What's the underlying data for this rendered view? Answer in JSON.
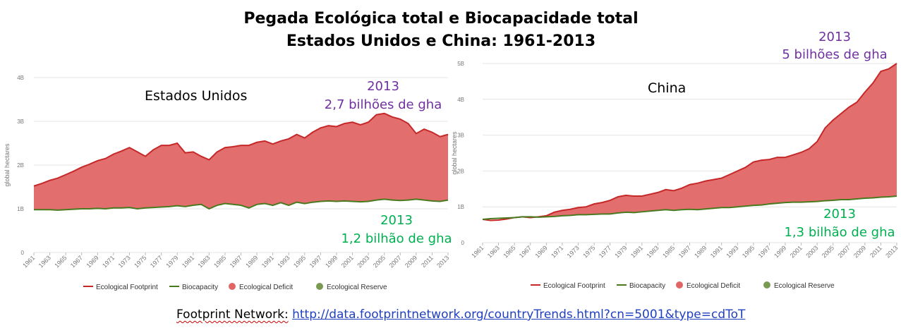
{
  "title_line1": "Pegada Ecológica total e Biocapacidade total",
  "title_line2": "Estados Unidos e China: 1961-2013",
  "source_label": "Footprint Network:",
  "source_url": "http://data.footprintnetwork.org/countryTrends.html?cn=5001&type=cdToT",
  "colors": {
    "footprint": "#c62828",
    "biocapacity": "#4a7a1f",
    "deficit": "#e06666",
    "reserve": "#7a9a52",
    "annotation_purple": "#7030a0",
    "annotation_green": "#00b050"
  },
  "chart_data": [
    {
      "type": "area",
      "country": "Estados Unidos",
      "ylabel": "global hectares",
      "y_ticks": [
        "0",
        "1B",
        "2B",
        "3B",
        "4B"
      ],
      "ylim": [
        0,
        4
      ],
      "x_ticks": [
        "1961",
        "1963",
        "1965",
        "1967",
        "1969",
        "1971",
        "1973",
        "1975",
        "1977",
        "1979",
        "1981",
        "1983",
        "1985",
        "1987",
        "1989",
        "1991",
        "1993",
        "1995",
        "1997",
        "1999",
        "2001",
        "2003",
        "2005",
        "2007",
        "2009",
        "2011",
        "2013"
      ],
      "x": [
        1961,
        1962,
        1963,
        1964,
        1965,
        1966,
        1967,
        1968,
        1969,
        1970,
        1971,
        1972,
        1973,
        1974,
        1975,
        1976,
        1977,
        1978,
        1979,
        1980,
        1981,
        1982,
        1983,
        1984,
        1985,
        1986,
        1987,
        1988,
        1989,
        1990,
        1991,
        1992,
        1993,
        1994,
        1995,
        1996,
        1997,
        1998,
        1999,
        2000,
        2001,
        2002,
        2003,
        2004,
        2005,
        2006,
        2007,
        2008,
        2009,
        2010,
        2011,
        2012,
        2013
      ],
      "series": [
        {
          "name": "Ecological Footprint",
          "values": [
            1.52,
            1.58,
            1.65,
            1.7,
            1.78,
            1.86,
            1.95,
            2.02,
            2.1,
            2.15,
            2.25,
            2.32,
            2.4,
            2.3,
            2.2,
            2.35,
            2.45,
            2.45,
            2.5,
            2.28,
            2.3,
            2.2,
            2.12,
            2.3,
            2.4,
            2.42,
            2.45,
            2.45,
            2.52,
            2.55,
            2.48,
            2.55,
            2.6,
            2.7,
            2.62,
            2.75,
            2.85,
            2.9,
            2.88,
            2.95,
            2.98,
            2.92,
            2.98,
            3.15,
            3.18,
            3.1,
            3.05,
            2.95,
            2.72,
            2.82,
            2.75,
            2.65,
            2.7
          ]
        },
        {
          "name": "Biocapacity",
          "values": [
            0.98,
            0.98,
            0.98,
            0.97,
            0.98,
            0.99,
            1.0,
            1.0,
            1.01,
            1.0,
            1.02,
            1.02,
            1.03,
            1.0,
            1.02,
            1.03,
            1.04,
            1.05,
            1.07,
            1.05,
            1.08,
            1.1,
            1.0,
            1.08,
            1.12,
            1.1,
            1.08,
            1.02,
            1.1,
            1.12,
            1.08,
            1.14,
            1.08,
            1.15,
            1.12,
            1.15,
            1.17,
            1.18,
            1.17,
            1.18,
            1.17,
            1.16,
            1.17,
            1.2,
            1.22,
            1.2,
            1.19,
            1.2,
            1.22,
            1.2,
            1.18,
            1.17,
            1.2
          ]
        }
      ],
      "legend": [
        "Ecological Footprint",
        "Biocapacity",
        "Ecological Deficit",
        "Ecological Reserve"
      ],
      "legend_position": "bottom",
      "annotations": {
        "top_year": "2013",
        "top_value": "2,7 bilhões de gha",
        "bottom_year": "2013",
        "bottom_value": "1,2 bilhão de gha"
      }
    },
    {
      "type": "area",
      "country": "China",
      "ylabel": "global hectares",
      "y_ticks": [
        "0",
        "1B",
        "2B",
        "3B",
        "4B",
        "5B"
      ],
      "ylim": [
        0,
        5
      ],
      "x_ticks": [
        "1961",
        "1963",
        "1965",
        "1967",
        "1969",
        "1971",
        "1973",
        "1975",
        "1977",
        "1979",
        "1981",
        "1983",
        "1985",
        "1987",
        "1989",
        "1991",
        "1993",
        "1995",
        "1997",
        "1999",
        "2001",
        "2003",
        "2005",
        "2007",
        "2009",
        "2011",
        "2013"
      ],
      "x": [
        1961,
        1962,
        1963,
        1964,
        1965,
        1966,
        1967,
        1968,
        1969,
        1970,
        1971,
        1972,
        1973,
        1974,
        1975,
        1976,
        1977,
        1978,
        1979,
        1980,
        1981,
        1982,
        1983,
        1984,
        1985,
        1986,
        1987,
        1988,
        1989,
        1990,
        1991,
        1992,
        1993,
        1994,
        1995,
        1996,
        1997,
        1998,
        1999,
        2000,
        2001,
        2002,
        2003,
        2004,
        2005,
        2006,
        2007,
        2008,
        2009,
        2010,
        2011,
        2012,
        2013
      ],
      "series": [
        {
          "name": "Ecological Footprint",
          "values": [
            0.65,
            0.62,
            0.63,
            0.66,
            0.7,
            0.72,
            0.7,
            0.72,
            0.75,
            0.85,
            0.9,
            0.93,
            0.98,
            1.0,
            1.08,
            1.12,
            1.18,
            1.28,
            1.32,
            1.3,
            1.3,
            1.35,
            1.4,
            1.48,
            1.45,
            1.52,
            1.62,
            1.66,
            1.72,
            1.76,
            1.8,
            1.9,
            2.0,
            2.1,
            2.25,
            2.3,
            2.32,
            2.38,
            2.38,
            2.45,
            2.52,
            2.62,
            2.82,
            3.2,
            3.42,
            3.6,
            3.78,
            3.92,
            4.2,
            4.45,
            4.78,
            4.85,
            5.0
          ]
        },
        {
          "name": "Biocapacity",
          "values": [
            0.65,
            0.67,
            0.68,
            0.69,
            0.7,
            0.72,
            0.72,
            0.71,
            0.72,
            0.73,
            0.75,
            0.76,
            0.78,
            0.78,
            0.79,
            0.8,
            0.8,
            0.83,
            0.85,
            0.84,
            0.86,
            0.88,
            0.9,
            0.92,
            0.9,
            0.92,
            0.93,
            0.92,
            0.94,
            0.96,
            0.98,
            0.98,
            1.0,
            1.02,
            1.04,
            1.05,
            1.08,
            1.1,
            1.12,
            1.13,
            1.13,
            1.14,
            1.15,
            1.17,
            1.18,
            1.2,
            1.2,
            1.22,
            1.24,
            1.25,
            1.27,
            1.28,
            1.3
          ]
        }
      ],
      "legend": [
        "Ecological Footprint",
        "Biocapacity",
        "Ecological Deficit",
        "Ecological Reserve"
      ],
      "legend_position": "bottom",
      "annotations": {
        "top_year": "2013",
        "top_value": "5 bilhões de gha",
        "bottom_year": "2013",
        "bottom_value": "1,3 bilhão de gha"
      }
    }
  ]
}
